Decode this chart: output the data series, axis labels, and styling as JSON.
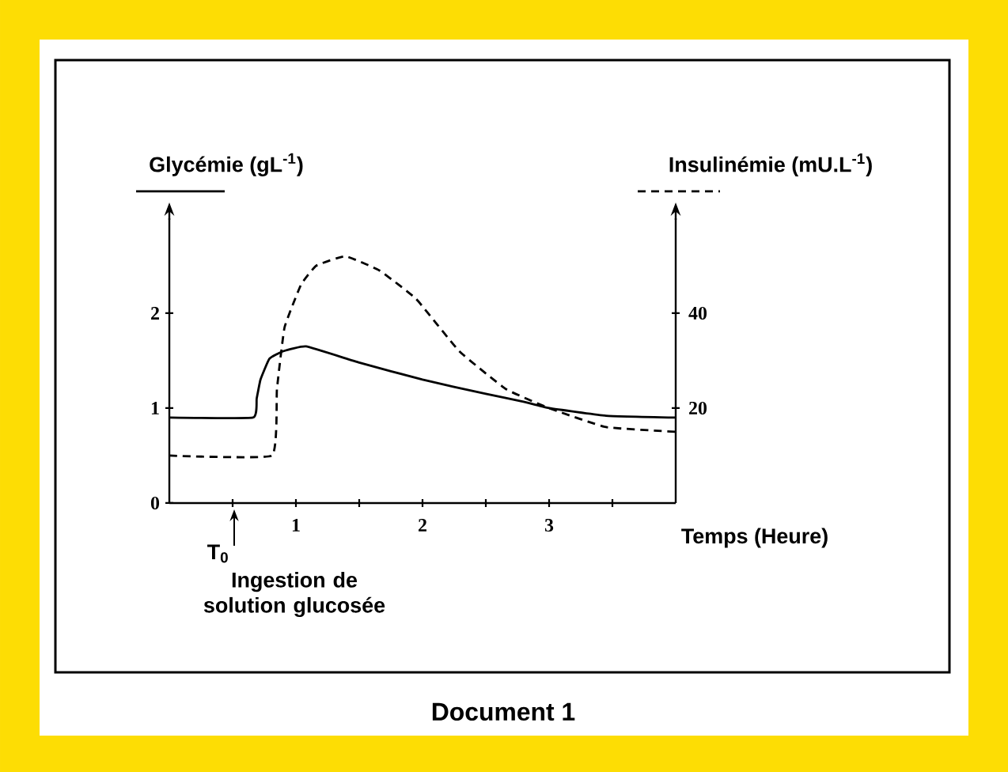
{
  "chart_data": {
    "type": "line",
    "title": "Document 1",
    "ylabel": "Glycémie (gL$^{-1}$)",
    "y2label": "Insulinémie (mU.L$^{-1}$)",
    "xlabel": "Temps (Heure)",
    "xlim": [
      0,
      4
    ],
    "xticks": [
      {
        "value": 0.5,
        "label": null
      },
      1,
      {
        "value": 1.5,
        "label": null
      },
      2,
      {
        "value": 2.5,
        "label": null
      },
      3,
      {
        "value": 3.5,
        "label": null
      }
    ],
    "ylim": [
      0,
      3
    ],
    "yticks": [
      0,
      1,
      2
    ],
    "y2lim": [
      0,
      60
    ],
    "y2ticks": [
      20,
      40
    ],
    "series": [
      {
        "color": "#000000",
        "line_style": "solid",
        "x": [
          0,
          0.66,
          0.69,
          0.72,
          0.79,
          0.9,
          1.08,
          1.5,
          2,
          2.5,
          2.79,
          3,
          3.45,
          4
        ],
        "values": [
          0.9,
          0.9,
          1.1,
          1.3,
          1.52,
          1.6,
          1.65,
          1.48,
          1.3,
          1.15,
          1.07,
          1.0,
          0.92,
          0.9
        ]
      },
      {
        "color": "#000000",
        "line_style": "dashed",
        "axis": "y2",
        "x": [
          0,
          0.81,
          0.85,
          0.91,
          1.04,
          1.16,
          1.39,
          1.66,
          1.95,
          2.29,
          2.66,
          3,
          3.45,
          4
        ],
        "values": [
          10,
          10,
          24,
          37,
          46,
          50,
          52,
          49,
          43,
          32,
          24,
          20,
          16,
          15
        ]
      }
    ],
    "annotations": [
      "T$_{0}$",
      "Ingestion de solution glucosée"
    ]
  }
}
